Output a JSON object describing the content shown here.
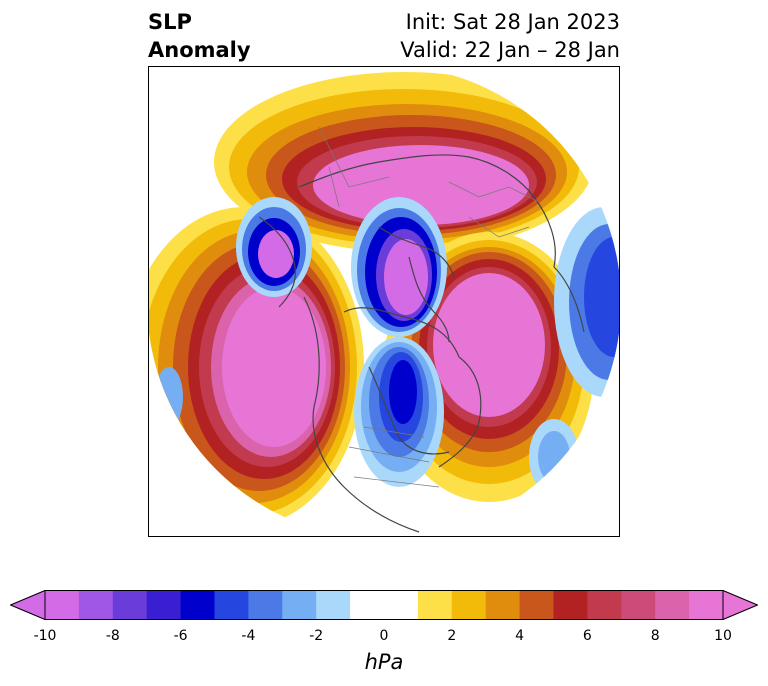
{
  "title": {
    "left_line1": "SLP",
    "left_line2": "Anomaly",
    "right_line1": "Init: Sat 28 Jan 2023",
    "right_line2": "Valid: 22 Jan – 28 Jan"
  },
  "colorbar": {
    "unit": "hPa",
    "tick_labels": [
      "-10",
      "-8",
      "-6",
      "-4",
      "-2",
      "0",
      "2",
      "4",
      "6",
      "8",
      "10"
    ],
    "range": [
      -10,
      10
    ],
    "extend": "both",
    "colors": [
      "#d46be6",
      "#a057e6",
      "#6a3ddb",
      "#3a1fd2",
      "#0000cd",
      "#2646e0",
      "#4b7ae6",
      "#75aef2",
      "#aad8fb",
      "#ffffff",
      "#ffffff",
      "#fde047",
      "#f2bb0a",
      "#e08c0c",
      "#c9561a",
      "#b22222",
      "#c23a4e",
      "#cd4b79",
      "#db63ac",
      "#e675d6"
    ],
    "under_color": "#d46be6",
    "over_color": "#e675d6"
  },
  "map": {
    "projection": "north polar stereographic",
    "features": [
      "coastlines",
      "country borders",
      "state/province borders"
    ],
    "anomaly_regions": [
      {
        "name": "North Pacific / Alaska high",
        "sign": "positive",
        "peak": 10
      },
      {
        "name": "Eurasia / Siberia high",
        "sign": "positive",
        "peak": 10
      },
      {
        "name": "North Atlantic / Arctic high",
        "sign": "positive",
        "peak": 10
      },
      {
        "name": "Hudson Bay / Canada low",
        "sign": "negative",
        "peak": -10
      },
      {
        "name": "Greenland Sea low",
        "sign": "negative",
        "peak": -10
      },
      {
        "name": "Mediterranean low",
        "sign": "negative",
        "peak": -10
      },
      {
        "name": "Western Europe low",
        "sign": "negative",
        "peak": -8
      }
    ]
  }
}
